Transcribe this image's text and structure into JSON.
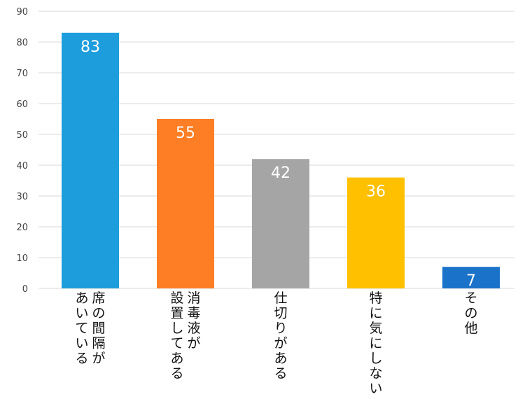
{
  "chart_data": {
    "type": "bar",
    "title": "",
    "xlabel": "",
    "ylabel": "",
    "categories": [
      [
        "席の間隔が",
        "あいている"
      ],
      [
        "消毒液が",
        "設置してある"
      ],
      [
        "仕切りがある"
      ],
      [
        "特に気にしない"
      ],
      [
        "その他"
      ]
    ],
    "values": [
      83,
      55,
      42,
      36,
      7
    ],
    "colors": [
      "#1e9ddc",
      "#fd7e24",
      "#a5a5a5",
      "#ffc000",
      "#1a72c9"
    ],
    "ylim": [
      0,
      90
    ],
    "yticks": [
      0,
      10,
      20,
      30,
      40,
      50,
      60,
      70,
      80,
      90
    ],
    "grid": true,
    "legend": "none",
    "data_labels": [
      "83",
      "55",
      "42",
      "36",
      "7"
    ]
  }
}
